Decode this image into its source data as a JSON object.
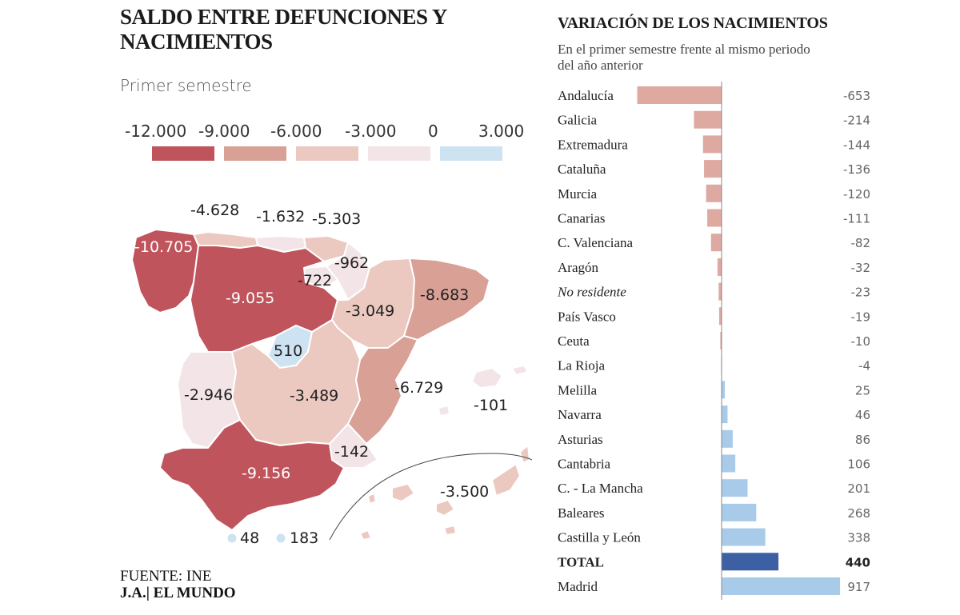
{
  "left_chart": {
    "title": "SALDO ENTRE DEFUNCIONES Y NACIMIENTOS",
    "subtitle": "Primer semestre",
    "legend": {
      "labels": [
        "-12.000",
        "-9.000",
        "-6.000",
        "-3.000",
        "0",
        "3.000"
      ],
      "colors": [
        "#bf545c",
        "#d9a096",
        "#ecc9c0",
        "#f3e5e7",
        "#cde3f2"
      ]
    },
    "regions": [
      {
        "name": "Galicia",
        "value": -10705,
        "label": "-10.705"
      },
      {
        "name": "Asturias",
        "value": -4628,
        "label": "-4.628"
      },
      {
        "name": "Cantabria",
        "value": -1632,
        "label": "-1.632"
      },
      {
        "name": "País Vasco",
        "value": -5303,
        "label": "-5.303"
      },
      {
        "name": "Navarra",
        "value": -962,
        "label": "-962"
      },
      {
        "name": "La Rioja",
        "value": -722,
        "label": "-722"
      },
      {
        "name": "Castilla y León",
        "value": -9055,
        "label": "-9.055"
      },
      {
        "name": "Aragón",
        "value": -3049,
        "label": "-3.049"
      },
      {
        "name": "Cataluña",
        "value": -8683,
        "label": "-8.683"
      },
      {
        "name": "Madrid",
        "value": 510,
        "label": "510"
      },
      {
        "name": "Extremadura",
        "value": -2946,
        "label": "-2.946"
      },
      {
        "name": "Castilla-La Mancha",
        "value": -3489,
        "label": "-3.489"
      },
      {
        "name": "C. Valenciana",
        "value": -6729,
        "label": "-6.729"
      },
      {
        "name": "Baleares",
        "value": -101,
        "label": "-101"
      },
      {
        "name": "Murcia",
        "value": -142,
        "label": "-142"
      },
      {
        "name": "Andalucía",
        "value": -9156,
        "label": "-9.156"
      },
      {
        "name": "Canarias",
        "value": -3500,
        "label": "-3.500"
      },
      {
        "name": "Ceuta",
        "value": 48,
        "label": "48"
      },
      {
        "name": "Melilla",
        "value": 183,
        "label": "183"
      }
    ]
  },
  "chart_data": {
    "type": "bar",
    "title": "VARIACIÓN DE LOS NACIMIENTOS",
    "subtitle": "En el primer semestre frente al mismo periodo del año anterior",
    "orientation": "horizontal",
    "categories": [
      "Andalucía",
      "Galicia",
      "Extremadura",
      "Cataluña",
      "Murcia",
      "Canarias",
      "C. Valenciana",
      "Aragón",
      "No residente",
      "País Vasco",
      "Ceuta",
      "La Rioja",
      "Melilla",
      "Navarra",
      "Asturias",
      "Cantabria",
      "C. - La Mancha",
      "Baleares",
      "Castilla y León",
      "TOTAL",
      "Madrid"
    ],
    "values": [
      -653,
      -214,
      -144,
      -136,
      -120,
      -111,
      -82,
      -32,
      -23,
      -19,
      -10,
      -4,
      25,
      46,
      86,
      106,
      201,
      268,
      338,
      440,
      917
    ],
    "labels": [
      "-653",
      "-214",
      "-144",
      "-136",
      "-120",
      "-111",
      "-82",
      "-32",
      "-23",
      "-19",
      "-10",
      "-4",
      "25",
      "46",
      "86",
      "106",
      "201",
      "268",
      "338",
      "440",
      "917"
    ],
    "italic_categories": [
      "No residente"
    ],
    "bold_categories": [
      "TOTAL"
    ],
    "colors": {
      "negative": "#dea9a0",
      "positive": "#a9cbea",
      "total": "#3d5fa3"
    }
  },
  "footer": {
    "source": "FUENTE: INE",
    "credit": "J.A.| EL MUNDO"
  }
}
